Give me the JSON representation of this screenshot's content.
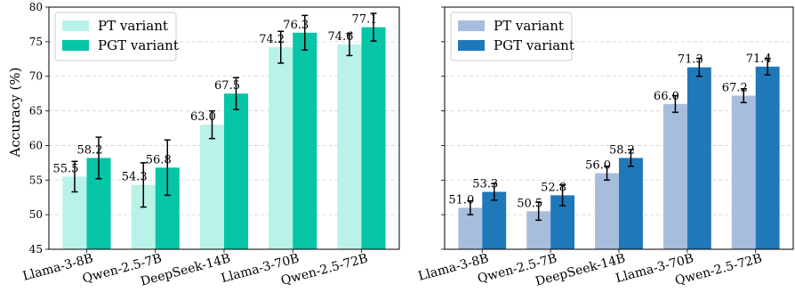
{
  "chart_data": [
    {
      "type": "bar",
      "categories": [
        "Llama-3-8B",
        "Qwen-2.5-7B",
        "DeepSeek-14B",
        "Llama-3-70B",
        "Qwen-2.5-72B"
      ],
      "series": [
        {
          "name": "PT variant",
          "values": [
            55.5,
            54.3,
            63.0,
            74.2,
            74.6
          ],
          "errors": [
            2.2,
            3.2,
            2.0,
            2.3,
            1.6
          ],
          "color": "#b8f2e8"
        },
        {
          "name": "PGT variant",
          "values": [
            58.2,
            56.8,
            67.5,
            76.3,
            77.1
          ],
          "errors": [
            3.0,
            4.0,
            2.3,
            2.5,
            2.0
          ],
          "color": "#06c4a6"
        }
      ],
      "value_labels": [
        [
          "55.5",
          "54.3",
          "63.0",
          "74.2",
          "74.6"
        ],
        [
          "58.2",
          "56.8",
          "67.5",
          "76.3",
          "77.1"
        ]
      ],
      "ylabel": "Accuracy (%)",
      "ylim": [
        45,
        80
      ],
      "yticks": [
        "45",
        "50",
        "55",
        "60",
        "65",
        "70",
        "75",
        "80"
      ],
      "grid": true,
      "legend": "top-left"
    },
    {
      "type": "bar",
      "categories": [
        "Llama-3-8B",
        "Qwen-2.5-7B",
        "DeepSeek-14B",
        "Llama-3-70B",
        "Qwen-2.5-72B"
      ],
      "series": [
        {
          "name": "PT variant",
          "values": [
            51.0,
            50.5,
            56.0,
            66.0,
            67.2
          ],
          "errors": [
            1.0,
            1.3,
            1.0,
            1.2,
            1.0
          ],
          "color": "#a7bddd"
        },
        {
          "name": "PGT variant",
          "values": [
            53.3,
            52.8,
            58.2,
            71.3,
            71.4
          ],
          "errors": [
            1.2,
            1.5,
            1.2,
            1.3,
            1.2
          ],
          "color": "#1f78b8"
        }
      ],
      "value_labels": [
        [
          "51.0",
          "50.5",
          "56.0",
          "66.0",
          "67.2"
        ],
        [
          "53.3",
          "52.8",
          "58.2",
          "71.3",
          "71.4"
        ]
      ],
      "ylabel": "",
      "ylim": [
        45,
        80
      ],
      "grid": true,
      "legend": "top-left"
    }
  ]
}
